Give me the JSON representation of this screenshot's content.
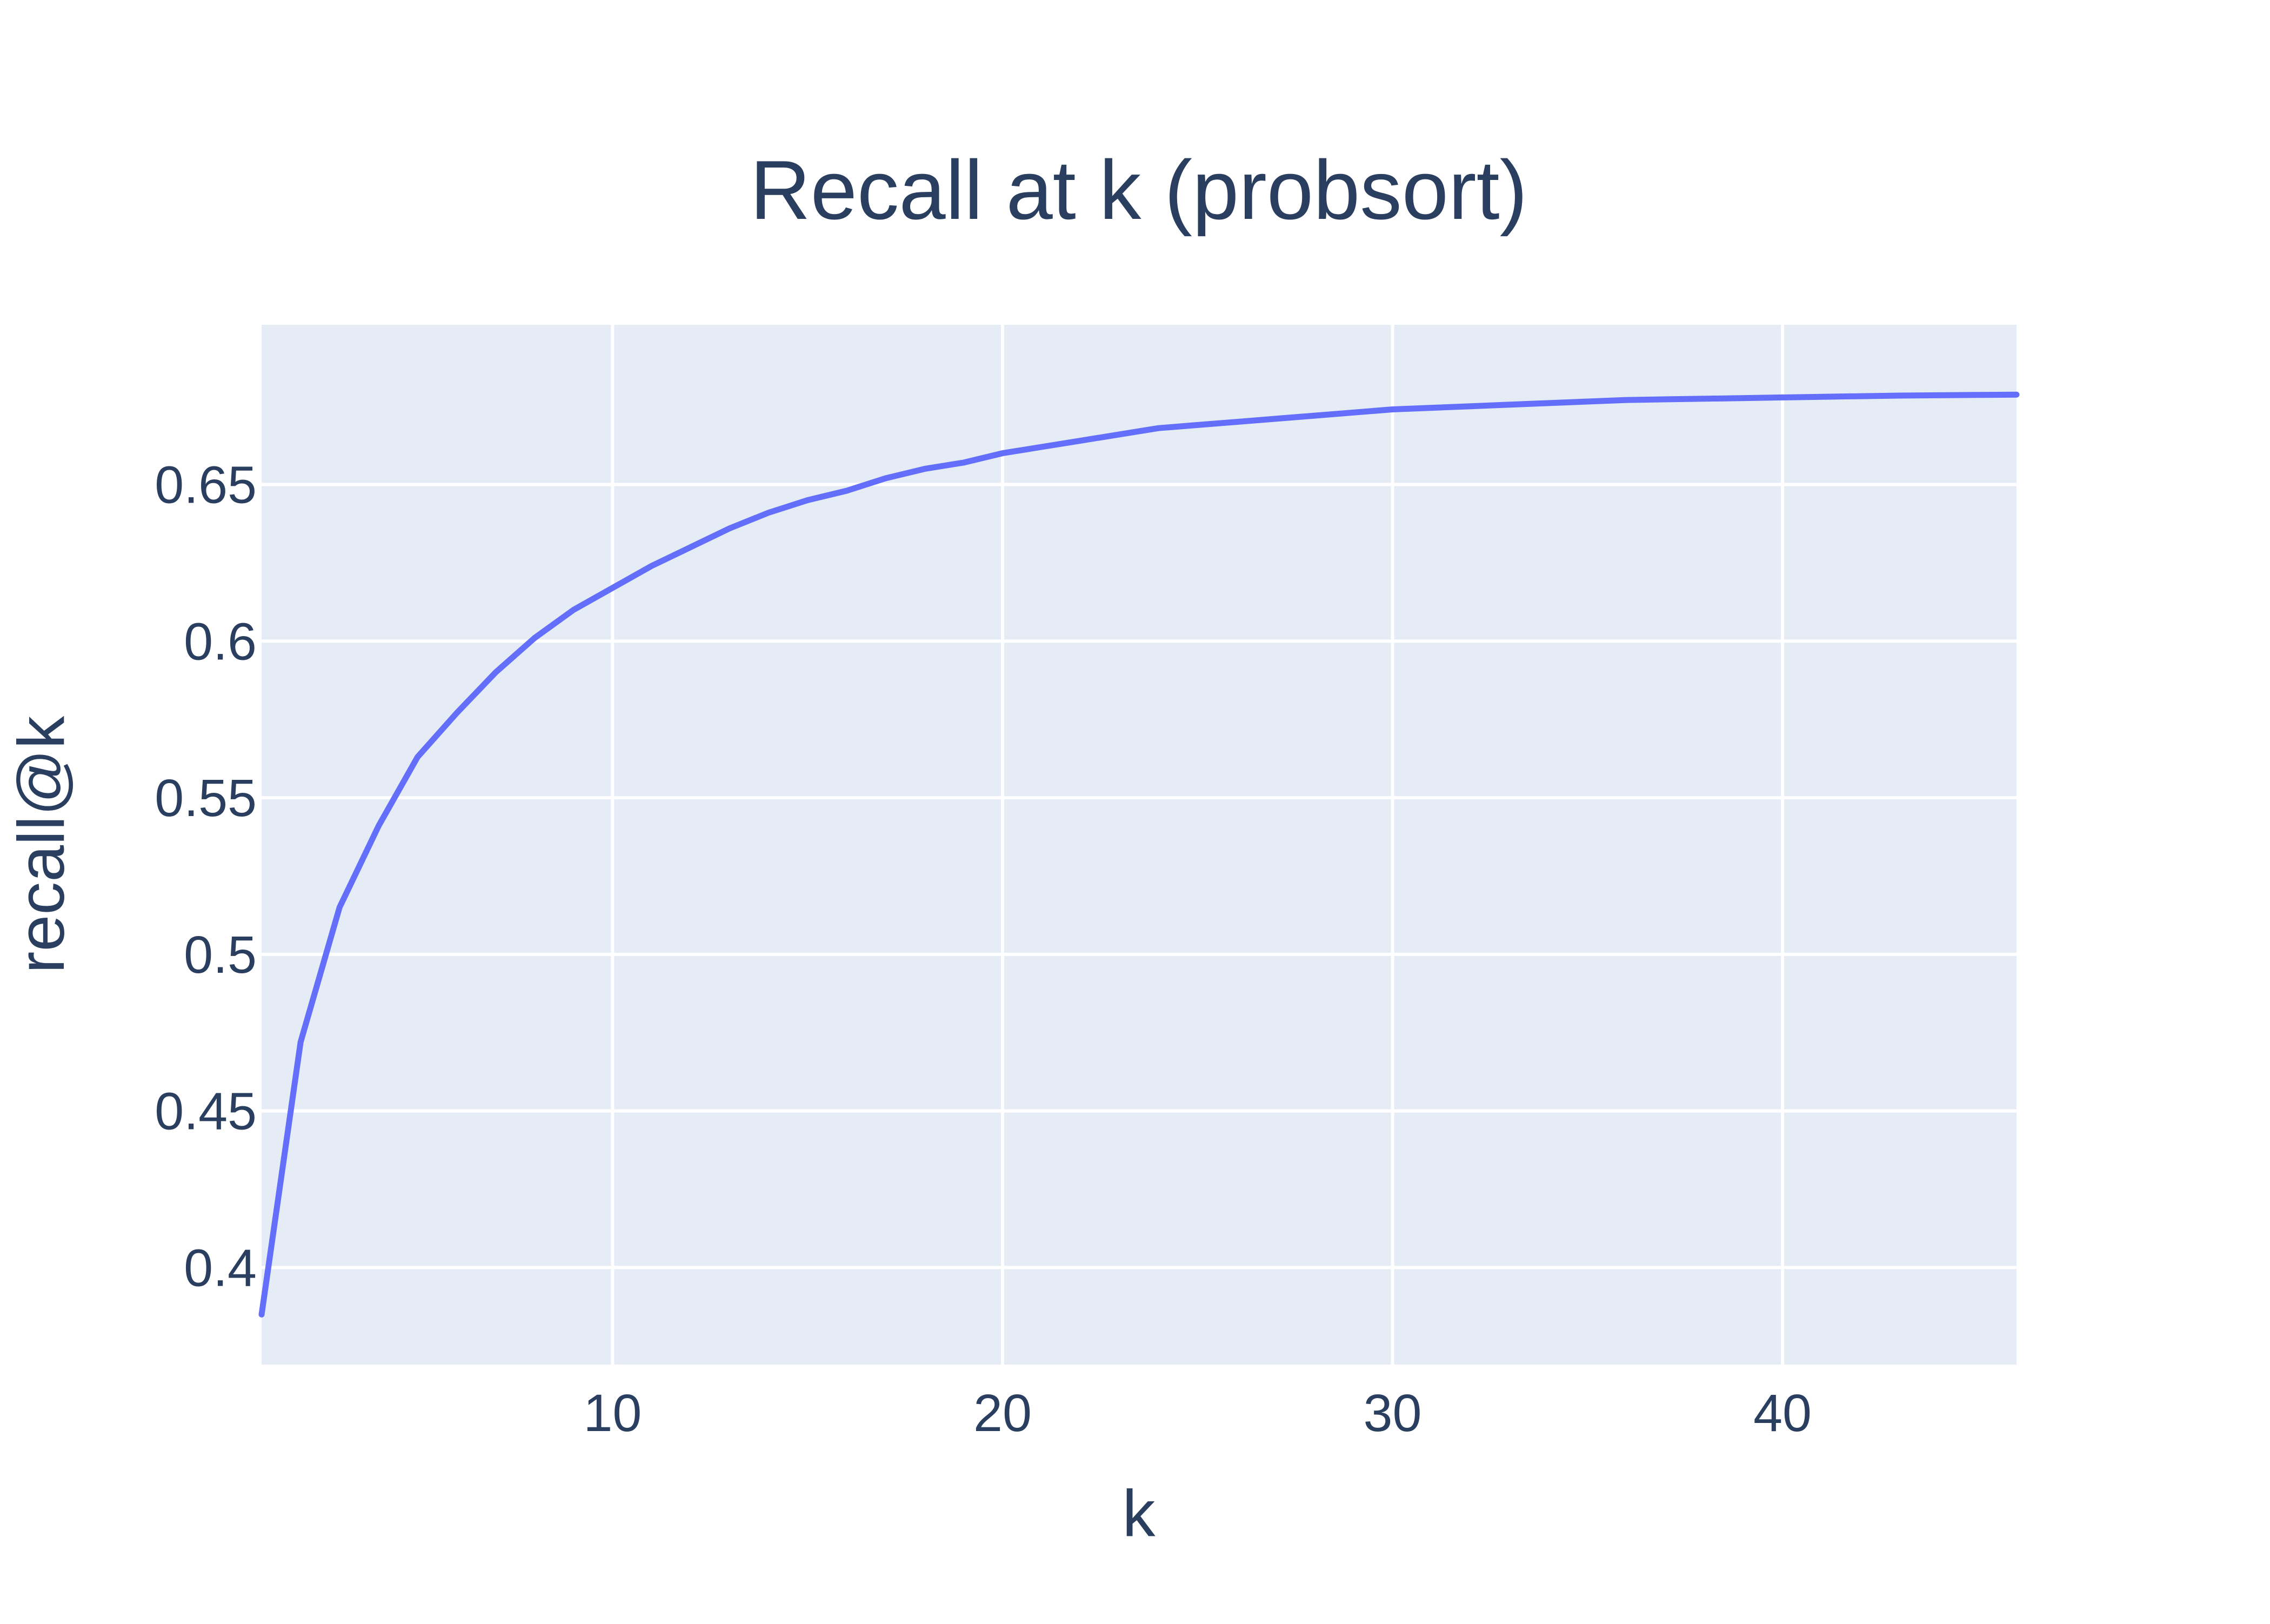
{
  "chart_data": {
    "type": "line",
    "title": "Recall at k (probsort)",
    "xlabel": "k",
    "ylabel": "recall@k",
    "xlim": [
      1,
      46
    ],
    "ylim": [
      0.369,
      0.701
    ],
    "x_ticks": [
      10,
      20,
      30,
      40
    ],
    "y_ticks": [
      0.4,
      0.45,
      0.5,
      0.55,
      0.6,
      0.65
    ],
    "grid": true,
    "legend": "none",
    "colors": {
      "line": "#636efa",
      "plot_background": "#e5ecf6",
      "grid": "#ffffff",
      "text": "#2a3f5f"
    },
    "series": [
      {
        "x": [
          1,
          2,
          3,
          4,
          5,
          6,
          7,
          8,
          9,
          10,
          11,
          12,
          13,
          14,
          15,
          16,
          17,
          18,
          19,
          20,
          21,
          22,
          23,
          24,
          25,
          26,
          27,
          28,
          29,
          30,
          31,
          32,
          33,
          34,
          35,
          36,
          37,
          38,
          39,
          40,
          41,
          42,
          43,
          44,
          45,
          46
        ],
        "values": [
          0.385,
          0.472,
          0.515,
          0.541,
          0.563,
          0.577,
          0.59,
          0.601,
          0.61,
          0.617,
          0.624,
          0.63,
          0.636,
          0.641,
          0.645,
          0.648,
          0.652,
          0.655,
          0.657,
          0.66,
          0.662,
          0.664,
          0.666,
          0.668,
          0.669,
          0.67,
          0.671,
          0.672,
          0.673,
          0.674,
          0.6745,
          0.675,
          0.6755,
          0.676,
          0.6765,
          0.677,
          0.6772,
          0.6774,
          0.6776,
          0.6778,
          0.678,
          0.6782,
          0.6784,
          0.6785,
          0.6786,
          0.6787
        ]
      }
    ]
  }
}
